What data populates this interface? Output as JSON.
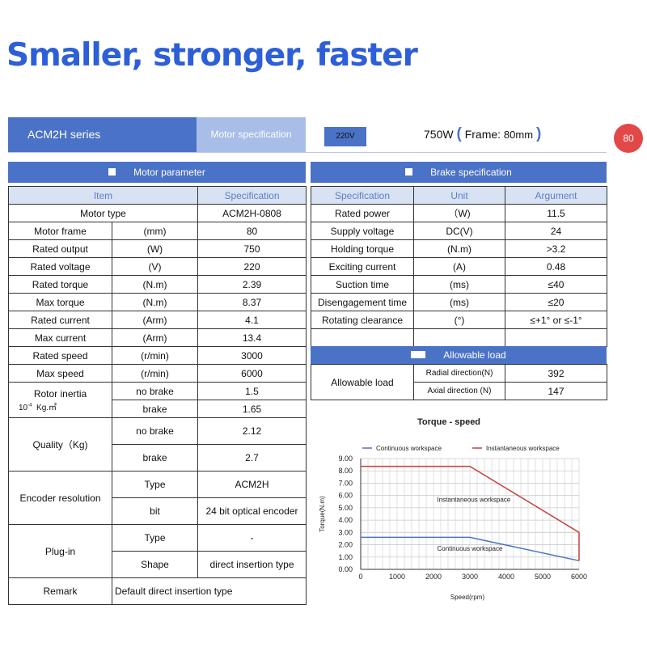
{
  "headline": "Smaller, stronger, faster",
  "header": {
    "series": "ACM2H series",
    "spec_label": "Motor specification",
    "voltage": "220V",
    "power": "750W",
    "frame_label": "Frame:",
    "frame_value": "80mm",
    "badge": "80"
  },
  "motor": {
    "title": "Motor parameter",
    "col_item": "Item",
    "col_spec": "Specification",
    "rows": [
      {
        "item": "Motor type",
        "unit": "",
        "value": "ACM2H-0808"
      },
      {
        "item": "Motor frame",
        "unit": "(mm)",
        "value": "80"
      },
      {
        "item": "Rated output",
        "unit": "(W)",
        "value": "750"
      },
      {
        "item": "Rated voltage",
        "unit": "(V)",
        "value": "220"
      },
      {
        "item": "Rated torque",
        "unit": "(N.m)",
        "value": "2.39"
      },
      {
        "item": "Max torque",
        "unit": "(N.m)",
        "value": "8.37"
      },
      {
        "item": "Rated current",
        "unit": "(Arm)",
        "value": "4.1"
      },
      {
        "item": "Max current",
        "unit": "(Arm)",
        "value": "13.4"
      },
      {
        "item": "Rated speed",
        "unit": "(r/min)",
        "value": "3000"
      },
      {
        "item": "Max speed",
        "unit": "(r/min)",
        "value": "6000"
      }
    ],
    "inertia": {
      "label": "Rotor inertia",
      "unit_base": "10",
      "unit_exp": "-4",
      "unit_tail": "Kg.㎡",
      "no_brake_label": "no brake",
      "no_brake_value": "1.5",
      "brake_label": "brake",
      "brake_value": "1.65"
    },
    "quality": {
      "label": "Quality（Kg)",
      "no_brake_label": "no brake",
      "no_brake_value": "2.12",
      "brake_label": "brake",
      "brake_value": "2.7"
    },
    "encoder": {
      "label": "Encoder resolution",
      "type_label": "Type",
      "type_value": "ACM2H",
      "bit_label": "bit",
      "bit_value": "24 bit optical encoder"
    },
    "plugin": {
      "label": "Plug-in",
      "type_label": "Type",
      "type_value": "-",
      "shape_label": "Shape",
      "shape_value": "direct insertion type"
    },
    "remark": {
      "label": "Remark",
      "value": "Default direct insertion type"
    }
  },
  "brake": {
    "title": "Brake specification",
    "col_spec": "Specification",
    "col_unit": "Unit",
    "col_arg": "Argument",
    "rows": [
      {
        "spec": "Rated power",
        "unit": "（W)",
        "arg": "11.5"
      },
      {
        "spec": "Supply voltage",
        "unit": "DC(V)",
        "arg": "24"
      },
      {
        "spec": "Holding torque",
        "unit": "(N.m)",
        "arg": ">3.2"
      },
      {
        "spec": "Exciting current",
        "unit": "(A)",
        "arg": "0.48"
      },
      {
        "spec": "Suction time",
        "unit": "(ms)",
        "arg": "≤40"
      },
      {
        "spec": "Disengagement time",
        "unit": "(ms)",
        "arg": "≤20"
      },
      {
        "spec": "Rotating clearance",
        "unit": "(°)",
        "arg": "≤+1° or ≤-1°"
      }
    ]
  },
  "load": {
    "title": "Allowable load",
    "label": "Allowable load",
    "radial_label": "Radial direction(N)",
    "radial_value": "392",
    "axial_label": "Axial direction (N)",
    "axial_value": "147"
  },
  "chart_data": {
    "type": "line",
    "title": "Torque - speed",
    "xlabel": "Speed(rpm)",
    "ylabel": "Torque(N.m)",
    "xlim": [
      0,
      6000
    ],
    "ylim": [
      0,
      9
    ],
    "x_ticks": [
      "0",
      "1000",
      "2000",
      "3000",
      "4000",
      "5000",
      "6000"
    ],
    "y_ticks": [
      "0.00",
      "1.00",
      "2.00",
      "3.00",
      "4.00",
      "5.00",
      "6.00",
      "7.00",
      "8.00",
      "9.00"
    ],
    "grid": true,
    "legend_position": "top",
    "series": [
      {
        "name": "Continuous workspace",
        "color": "#4a72c7",
        "points": [
          [
            0,
            2.6
          ],
          [
            3000,
            2.6
          ],
          [
            6000,
            0.7
          ]
        ]
      },
      {
        "name": "Instantaneous workspace",
        "color": "#c8403c",
        "points": [
          [
            0,
            8.37
          ],
          [
            3000,
            8.37
          ],
          [
            6000,
            3.0
          ],
          [
            6000,
            0.7
          ]
        ]
      }
    ],
    "annotations": [
      {
        "text": "Instantaneous workspace",
        "x": 2100,
        "y": 5.5
      },
      {
        "text": "Continuous workspace",
        "x": 2100,
        "y": 1.5
      }
    ]
  }
}
